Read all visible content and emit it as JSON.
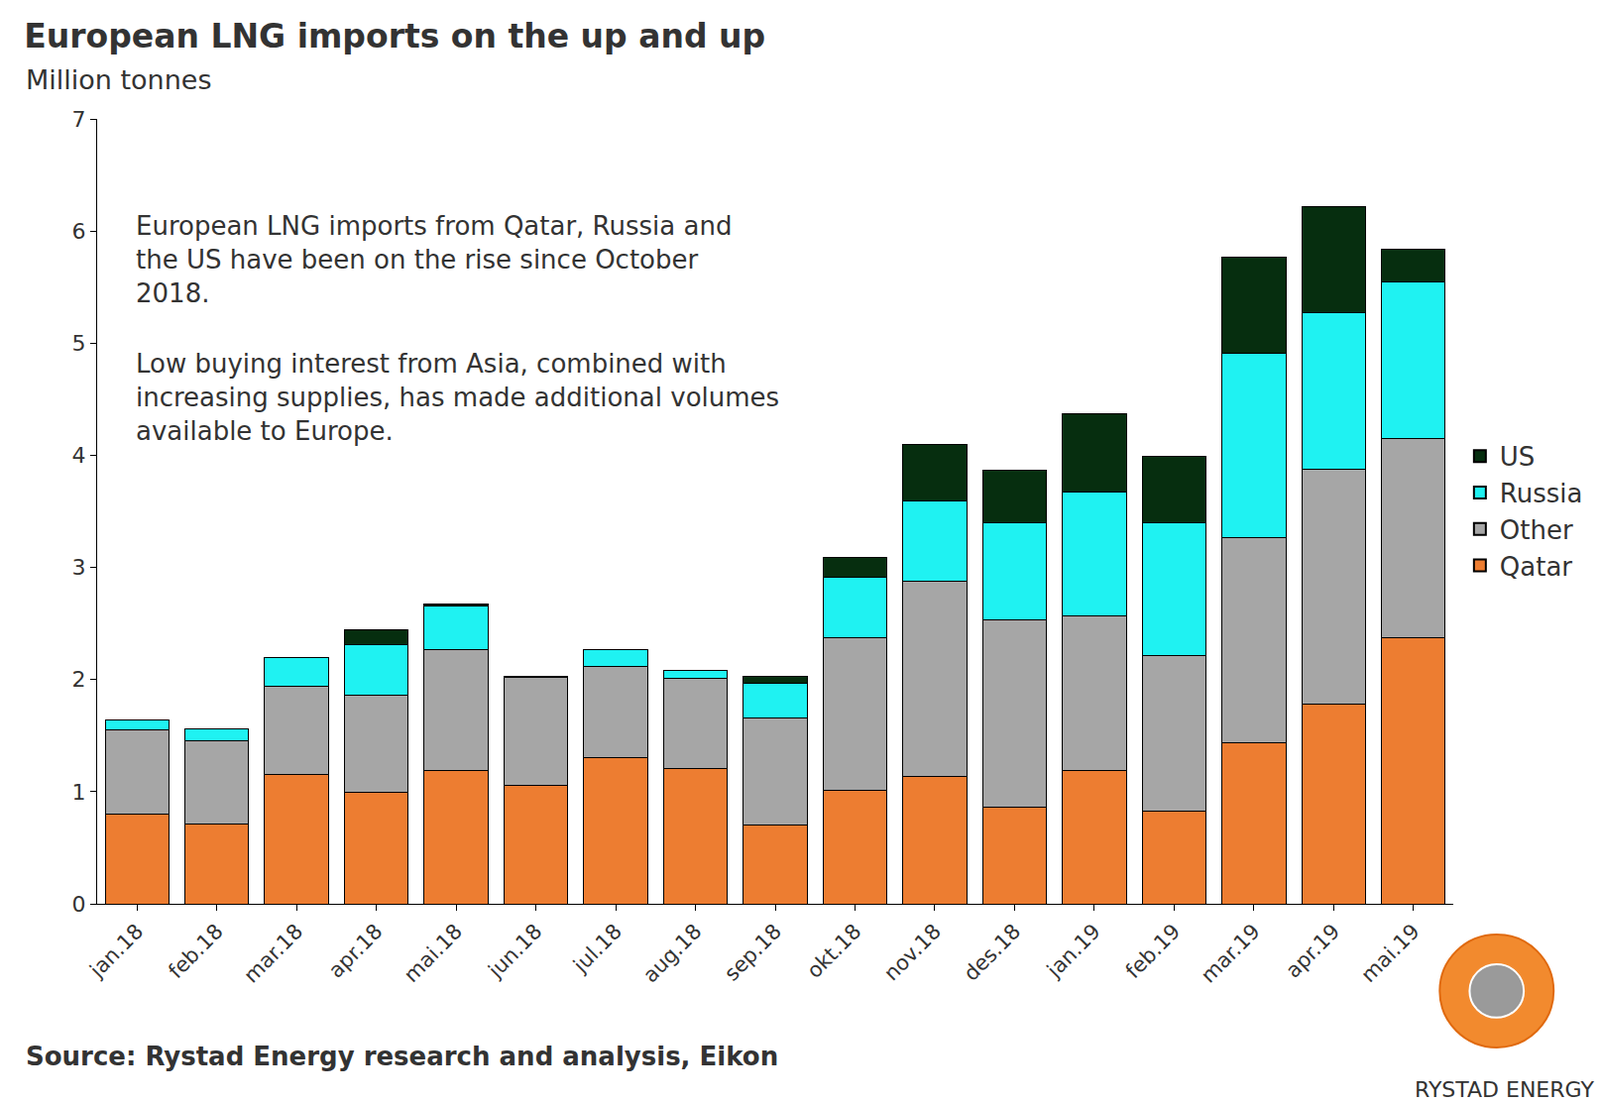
{
  "chart_data": {
    "type": "bar",
    "title": "European LNG imports on the up and up",
    "subtitle": "Million tonnes",
    "annotations": [
      [
        "European LNG imports from Qatar, Russia and",
        "the US have been on the rise since October",
        "2018."
      ],
      [
        "Low buying interest from Asia, combined with",
        "increasing supplies, has made additional volumes",
        "available to Europe."
      ]
    ],
    "source": "Source: Rystad Energy research and analysis, Eikon",
    "logo": "RYSTAD ENERGY",
    "categories": [
      "jan.18",
      "feb.18",
      "mar.18",
      "apr.18",
      "mai.18",
      "jun.18",
      "jul.18",
      "aug.18",
      "sep.18",
      "okt.18",
      "nov.18",
      "des.18",
      "jan.19",
      "feb.19",
      "mar.19",
      "apr.19",
      "mai.19"
    ],
    "series": [
      {
        "name": "Qatar",
        "color": "#ed7d31",
        "values": [
          0.8,
          0.71,
          1.15,
          0.99,
          1.19,
          1.06,
          1.3,
          1.21,
          0.7,
          1.01,
          1.14,
          0.86,
          1.19,
          0.83,
          1.44,
          1.78,
          2.37
        ]
      },
      {
        "name": "Other",
        "color": "#a6a6a6",
        "values": [
          0.75,
          0.74,
          0.79,
          0.87,
          1.08,
          0.96,
          0.82,
          0.8,
          0.96,
          1.36,
          1.74,
          1.67,
          1.38,
          1.38,
          1.83,
          2.1,
          1.78
        ]
      },
      {
        "name": "Russia",
        "color": "#1ff2f2",
        "values": [
          0.09,
          0.11,
          0.26,
          0.45,
          0.39,
          0.01,
          0.15,
          0.07,
          0.31,
          0.54,
          0.71,
          0.87,
          1.1,
          1.19,
          1.64,
          1.39,
          1.4
        ]
      },
      {
        "name": "US",
        "color": "#062e0f",
        "values": [
          0,
          0,
          0,
          0.13,
          0.01,
          0,
          0,
          0,
          0.06,
          0.18,
          0.51,
          0.47,
          0.7,
          0.59,
          0.86,
          0.95,
          0.29
        ]
      }
    ],
    "ylim": [
      0,
      7
    ],
    "yticks": [
      0,
      1,
      2,
      3,
      4,
      5,
      6,
      7
    ],
    "stacked": true,
    "grid": false,
    "legend": "right"
  }
}
